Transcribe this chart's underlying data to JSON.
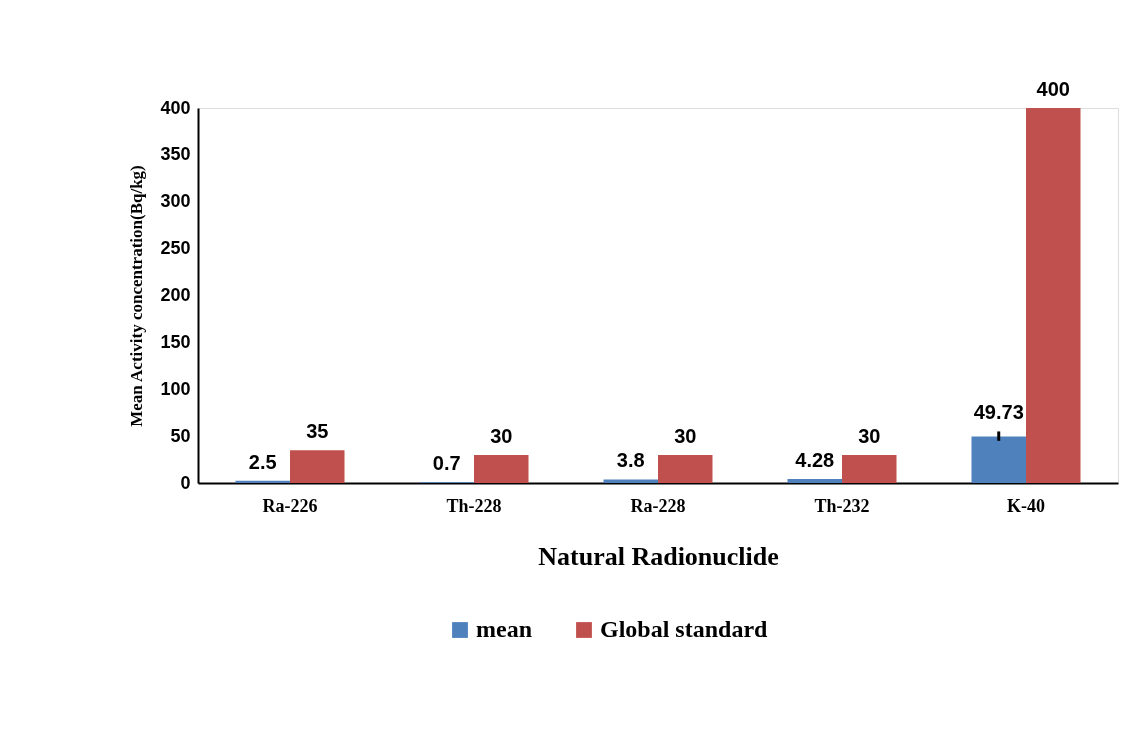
{
  "chart_data": {
    "type": "bar",
    "xlabel": "Natural Radionuclide",
    "ylabel": "Mean Activity concentration(Bq/kg)",
    "categories": [
      "Ra-226",
      "Th-228",
      "Ra-228",
      "Th-232",
      "K-40"
    ],
    "series": [
      {
        "name": "mean",
        "color": "#4f81bd",
        "values": [
          2.5,
          0.7,
          3.8,
          4.28,
          49.73
        ],
        "errors": [
          null,
          null,
          null,
          null,
          [
            45,
            55
          ]
        ]
      },
      {
        "name": "Global standard",
        "color": "#c0504d",
        "values": [
          35,
          30,
          30,
          30,
          400
        ]
      }
    ],
    "ylim": [
      0,
      400
    ],
    "yticks": [
      0,
      50,
      100,
      150,
      200,
      250,
      300,
      350,
      400
    ],
    "data_labels": true,
    "grid": false,
    "legend": "bottom"
  }
}
